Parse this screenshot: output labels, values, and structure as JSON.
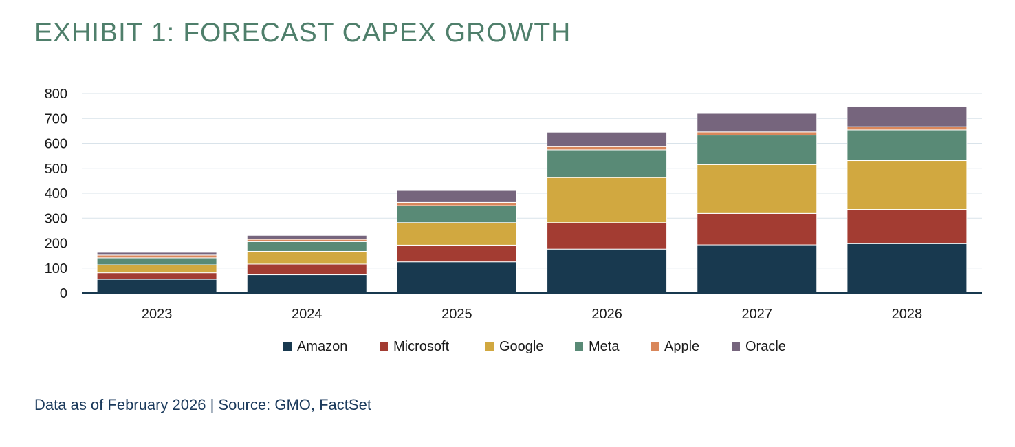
{
  "title": "EXHIBIT 1: FORECAST CAPEX GROWTH",
  "footnote": "Data as of February 2026 | Source: GMO, FactSet",
  "chart_data": {
    "type": "bar",
    "stacked": true,
    "categories": [
      "2023",
      "2024",
      "2025",
      "2026",
      "2027",
      "2028"
    ],
    "ylim": [
      0,
      800
    ],
    "yticks": [
      0,
      100,
      200,
      300,
      400,
      500,
      600,
      700,
      800
    ],
    "grid": true,
    "legend_position": "bottom",
    "series": [
      {
        "name": "Amazon",
        "color": "#18394f",
        "values": [
          55,
          73,
          125,
          176,
          193,
          198
        ]
      },
      {
        "name": "Microsoft",
        "color": "#a33c32",
        "values": [
          26,
          43,
          67,
          106,
          126,
          137
        ]
      },
      {
        "name": "Google",
        "color": "#d1a840",
        "values": [
          32,
          51,
          90,
          181,
          196,
          196
        ]
      },
      {
        "name": "Meta",
        "color": "#598a76",
        "values": [
          28,
          39,
          68,
          111,
          118,
          123
        ]
      },
      {
        "name": "Apple",
        "color": "#d9875b",
        "values": [
          11,
          9,
          13,
          13,
          13,
          13
        ]
      },
      {
        "name": "Oracle",
        "color": "#76657d",
        "values": [
          11,
          16,
          48,
          58,
          74,
          82
        ]
      }
    ]
  }
}
